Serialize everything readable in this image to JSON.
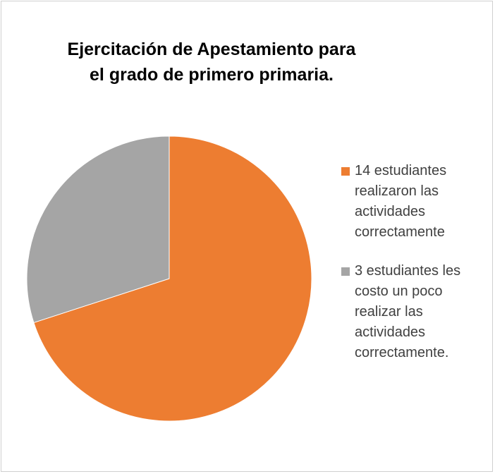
{
  "chart_data": {
    "type": "pie",
    "title": "Ejercitación de Apestamiento para el grado de primero primaria.",
    "categories": [
      "14 estudiantes realizaron las actividades correctamente",
      "3 estudiantes les costo un poco realizar las actividades correctamente."
    ],
    "values": [
      70,
      30
    ],
    "colors": [
      "#ed7d31",
      "#a5a5a5"
    ],
    "legend": "right"
  }
}
